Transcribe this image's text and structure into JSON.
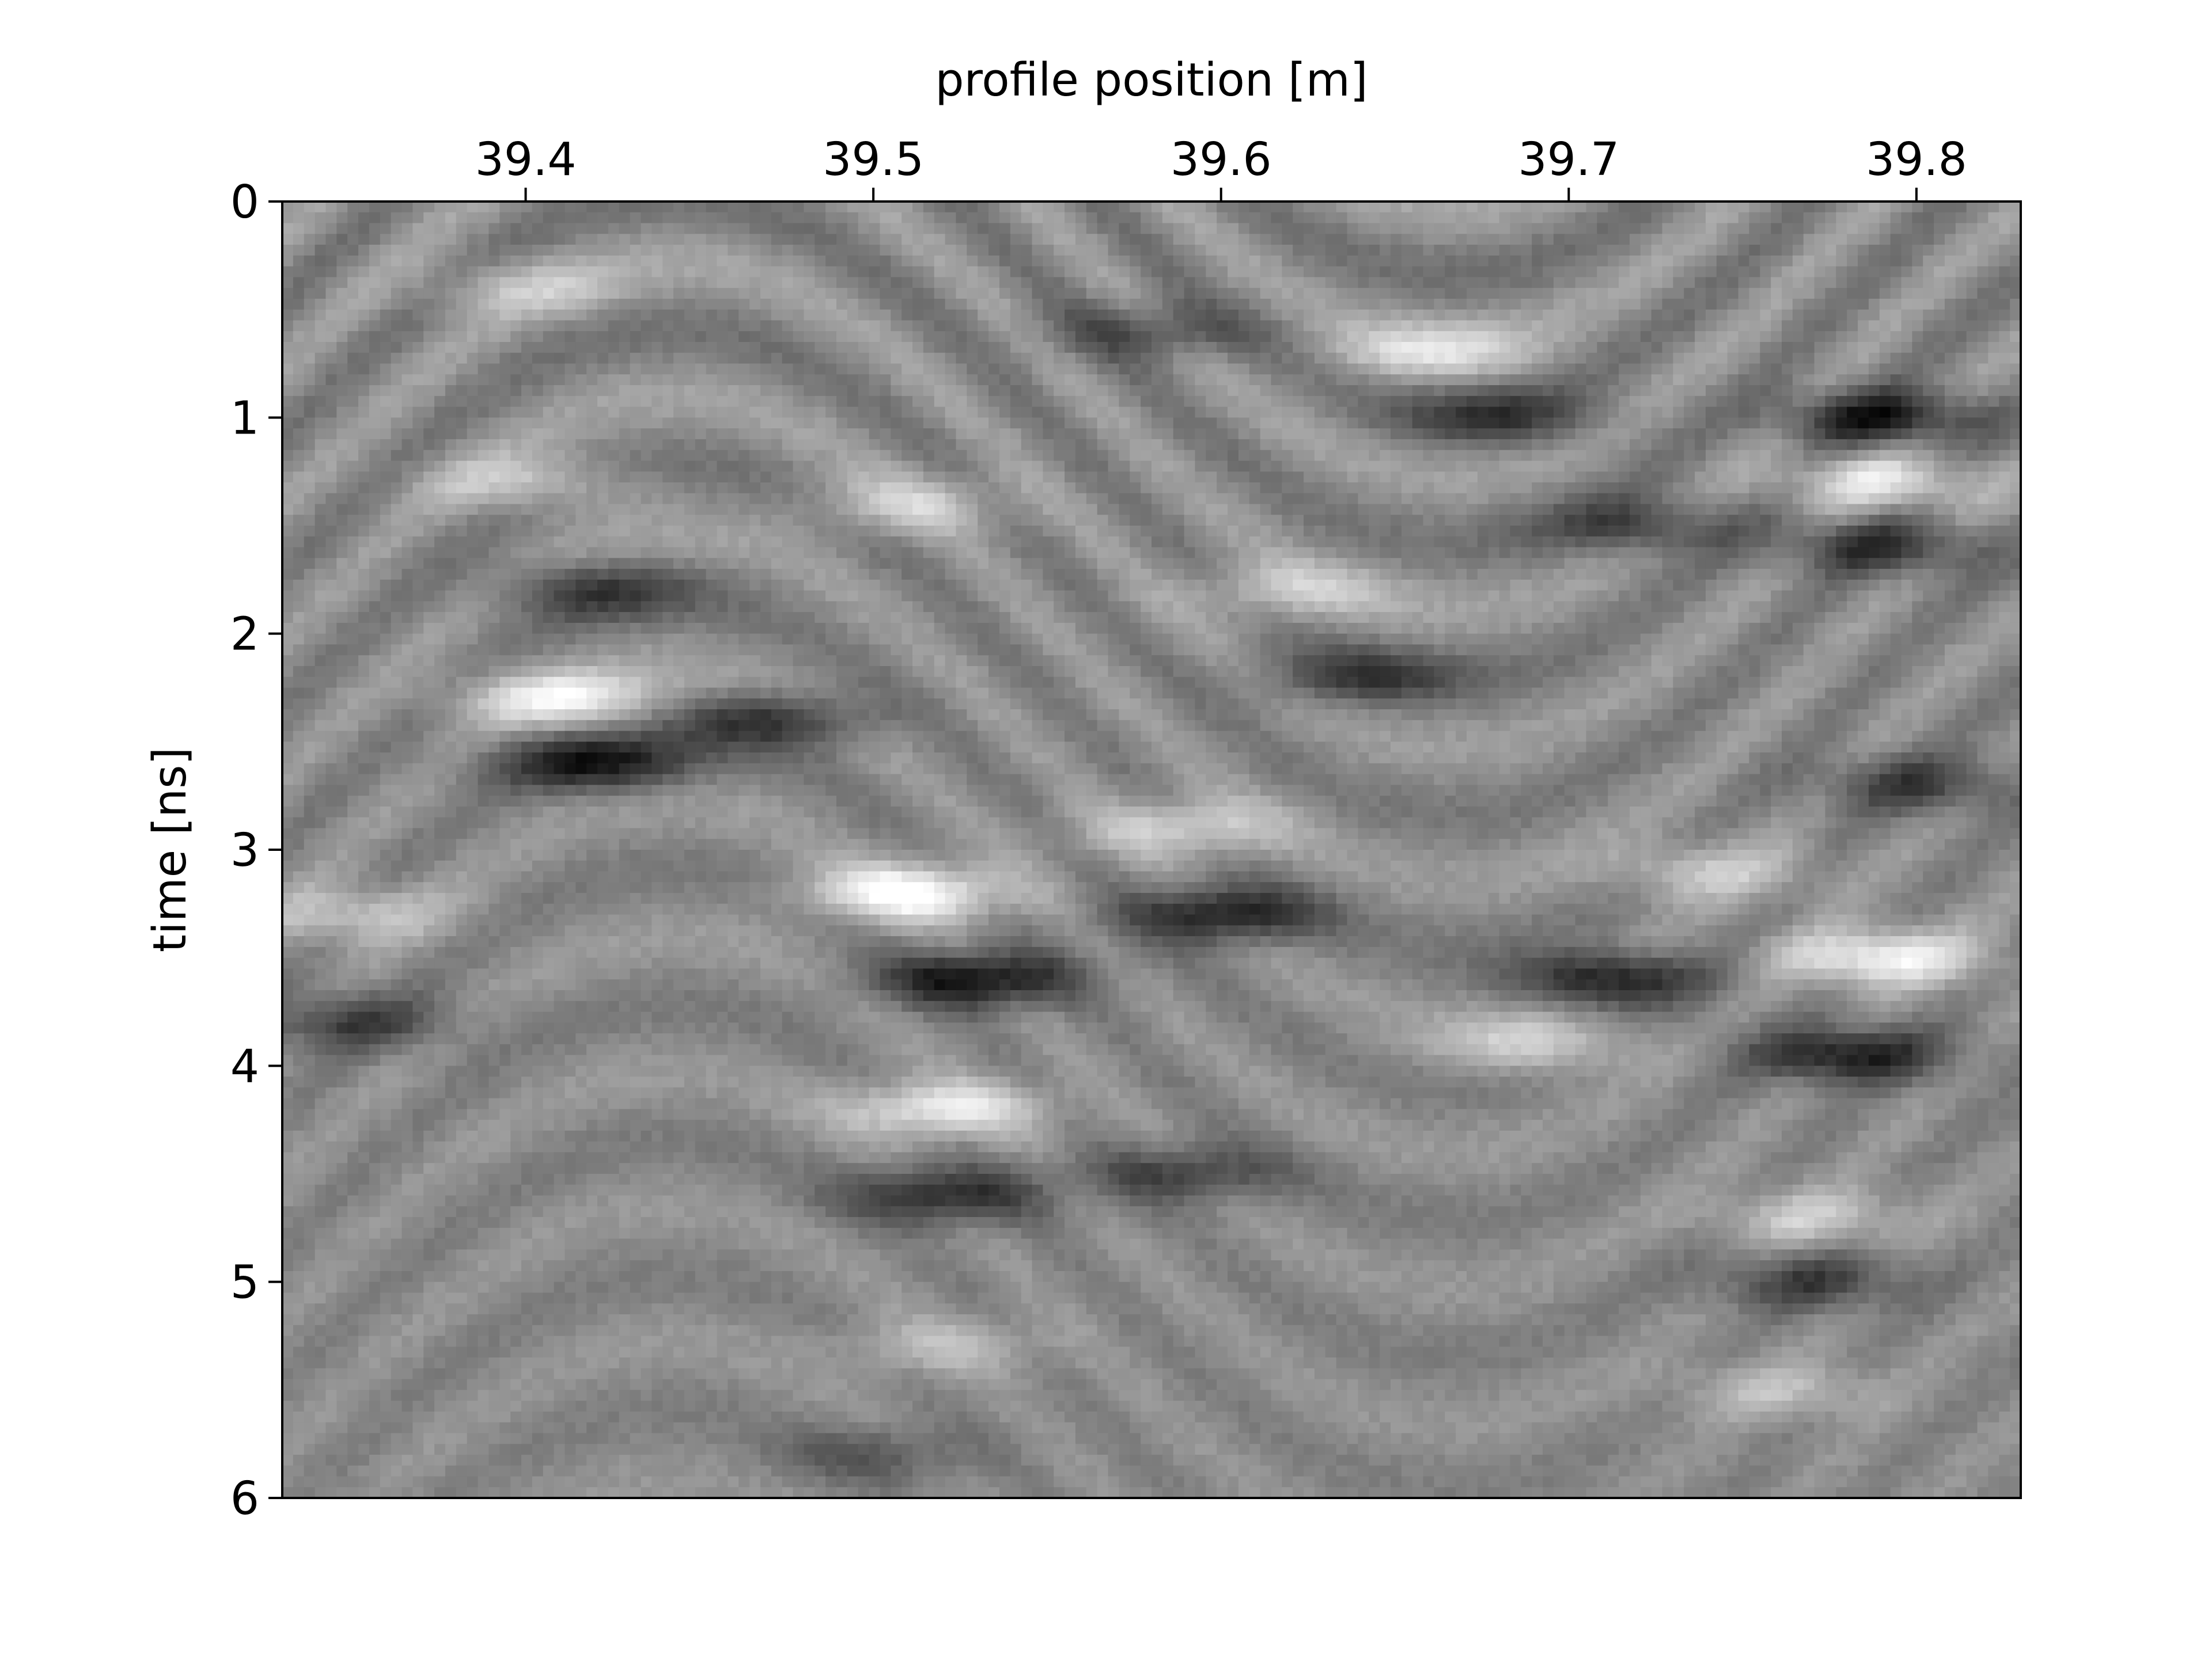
{
  "chart_data": {
    "type": "heatmap",
    "colormap": "grayscale",
    "title": "",
    "xlabel": "profile position [m]",
    "ylabel": "time [ns]",
    "x_axis_position": "top",
    "y_axis_inverted": true,
    "xlim": [
      39.33,
      39.83
    ],
    "ylim": [
      6,
      0
    ],
    "x_ticks": [
      {
        "value": 39.4,
        "label": "39.4"
      },
      {
        "value": 39.5,
        "label": "39.5"
      },
      {
        "value": 39.6,
        "label": "39.6"
      },
      {
        "value": 39.7,
        "label": "39.7"
      },
      {
        "value": 39.8,
        "label": "39.8"
      }
    ],
    "y_ticks": [
      {
        "value": 0,
        "label": "0"
      },
      {
        "value": 1,
        "label": "1"
      },
      {
        "value": 2,
        "label": "2"
      },
      {
        "value": 3,
        "label": "3"
      },
      {
        "value": 4,
        "label": "4"
      },
      {
        "value": 5,
        "label": "5"
      },
      {
        "value": 6,
        "label": "6"
      }
    ],
    "grid": false,
    "legend": "none",
    "reflections": [
      {
        "x": 39.51,
        "y": 3.2,
        "amplitude": 1.0
      },
      {
        "x": 39.53,
        "y": 3.6,
        "amplitude": -1.0
      },
      {
        "x": 39.6,
        "y": 3.3,
        "amplitude": -0.9
      },
      {
        "x": 39.59,
        "y": 2.9,
        "amplitude": 0.6
      },
      {
        "x": 39.41,
        "y": 2.3,
        "amplitude": 0.8
      },
      {
        "x": 39.42,
        "y": 2.6,
        "amplitude": -0.9
      },
      {
        "x": 39.47,
        "y": 2.4,
        "amplitude": -0.7
      },
      {
        "x": 39.52,
        "y": 4.2,
        "amplitude": 0.8
      },
      {
        "x": 39.52,
        "y": 4.6,
        "amplitude": -0.8
      },
      {
        "x": 39.59,
        "y": 4.5,
        "amplitude": -0.6
      },
      {
        "x": 39.71,
        "y": 3.6,
        "amplitude": -0.9
      },
      {
        "x": 39.69,
        "y": 3.9,
        "amplitude": 0.6
      },
      {
        "x": 39.79,
        "y": 3.5,
        "amplitude": 0.9
      },
      {
        "x": 39.78,
        "y": 3.95,
        "amplitude": -0.9
      },
      {
        "x": 39.79,
        "y": 1.0,
        "amplitude": -0.9
      },
      {
        "x": 39.79,
        "y": 1.3,
        "amplitude": 0.7
      },
      {
        "x": 39.79,
        "y": 1.6,
        "amplitude": -0.7
      },
      {
        "x": 39.66,
        "y": 0.7,
        "amplitude": 0.6
      },
      {
        "x": 39.68,
        "y": 1.0,
        "amplitude": -0.6
      },
      {
        "x": 39.51,
        "y": 1.4,
        "amplitude": 0.5
      },
      {
        "x": 39.4,
        "y": 1.3,
        "amplitude": 0.5
      },
      {
        "x": 39.42,
        "y": 1.8,
        "amplitude": -0.6
      },
      {
        "x": 39.72,
        "y": 1.5,
        "amplitude": -0.6
      },
      {
        "x": 39.62,
        "y": 1.8,
        "amplitude": 0.5
      },
      {
        "x": 39.64,
        "y": 2.2,
        "amplitude": -0.6
      },
      {
        "x": 39.35,
        "y": 3.8,
        "amplitude": -0.6
      },
      {
        "x": 39.35,
        "y": 3.3,
        "amplitude": 0.5
      },
      {
        "x": 39.74,
        "y": 3.1,
        "amplitude": 0.5
      },
      {
        "x": 39.77,
        "y": 4.7,
        "amplitude": 0.5
      },
      {
        "x": 39.77,
        "y": 5.0,
        "amplitude": -0.6
      },
      {
        "x": 39.76,
        "y": 5.5,
        "amplitude": 0.4
      },
      {
        "x": 39.52,
        "y": 5.3,
        "amplitude": 0.4
      },
      {
        "x": 39.5,
        "y": 5.8,
        "amplitude": -0.4
      },
      {
        "x": 39.8,
        "y": 2.7,
        "amplitude": -0.6
      },
      {
        "x": 39.58,
        "y": 0.6,
        "amplitude": -0.5
      },
      {
        "x": 39.4,
        "y": 0.4,
        "amplitude": 0.4
      }
    ]
  }
}
